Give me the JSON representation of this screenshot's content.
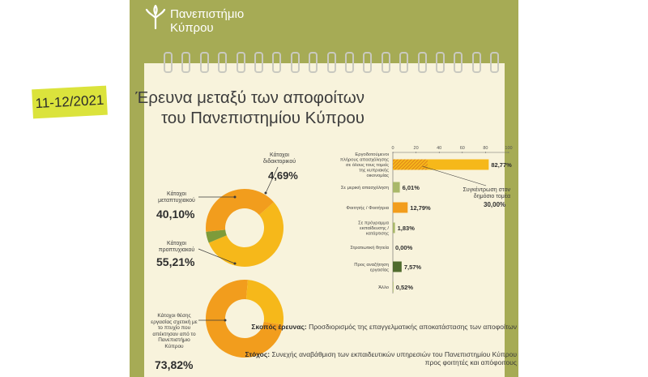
{
  "header": {
    "university_name_line1": "Πανεπιστήμιο",
    "university_name_line2": "Κύπρου",
    "logo_icon": "cyprus-university-tree-logo-icon"
  },
  "date": "11-12/2021",
  "title_line1": "Έρευνα μεταξύ των αποφοίτων",
  "title_line2": "του Πανεπιστημίου Κύπρου",
  "colors": {
    "frame": "#a6ab55",
    "paper": "#f8f3dc",
    "accent_yellow": "#dbe33c",
    "orange": "#f29d1d",
    "gold": "#f6b81a",
    "green_light": "#8fae4a",
    "green_dark": "#4f6b2e"
  },
  "chart_data": [
    {
      "type": "pie",
      "labels": [
        "Κάτοχοι μεταπτυχιακού",
        "Κάτοχοι προπτυχιακού",
        "Κάτοχοι διδακτορικού"
      ],
      "values": [
        40.1,
        55.21,
        4.69
      ],
      "value_labels": [
        "40,10%",
        "55,21%",
        "4,69%"
      ],
      "colors": [
        "#f29d1d",
        "#f6b81a",
        "#7d9b3a"
      ]
    },
    {
      "type": "pie",
      "labels": [
        "Κάτοχοι θέσης εργασίας σχετική με το πτυχίο που απέκτησαν από το Πανεπιστήμιο Κύπρου"
      ],
      "values": [
        73.82
      ],
      "value_labels": [
        "73,82%"
      ],
      "colors": [
        "#f29d1d",
        "#f6b81a"
      ]
    },
    {
      "type": "bar",
      "orientation": "horizontal",
      "categories": [
        "Εργοδοτούμενοι πλήρους απασχόλησης σε όλους τους τομείς της κυπριακής οικονομίας",
        "Σε μερική απασχόληση",
        "Φοιτητής / Φοιτήτρια",
        "Σε πρόγραμμα εκπαίδευσης / κατάρτισης",
        "Στρατιωτική θητεία",
        "Προς αναζήτηση εργασίας",
        "Άλλο"
      ],
      "values": [
        82.77,
        6.01,
        12.79,
        1.83,
        0.0,
        7.57,
        0.52
      ],
      "value_labels": [
        "82,77%",
        "6,01%",
        "12,79%",
        "1,83%",
        "0,00%",
        "7,57%",
        "0,52%"
      ],
      "colors": [
        "#f6b81a",
        "#a9b86a",
        "#f29d1d",
        "#a9b86a",
        "#a9b86a",
        "#4f6b2e",
        "#a9b86a"
      ],
      "xlim": [
        0,
        100
      ],
      "xticks": [
        "0",
        "20",
        "40",
        "60",
        "80",
        "100"
      ],
      "annotation": {
        "text": "Συγκέντρωση στον δημόσιο τομέα",
        "value": 30.0,
        "value_label": "30,00%"
      }
    }
  ],
  "labels": {
    "doctoral": "Κάτοχοι διδακτορικού",
    "master": "Κάτοχοι μεταπτυχιακού",
    "bachelor": "Κάτοχοι προπτυχιακού",
    "job_related": "Κάτοχοι θέσης εργασίας σχετική με το πτυχίο που απέκτησαν από το Πανεπιστήμιο Κύπρου",
    "public_sector": "Συγκέντρωση στον δημόσιο τομέα"
  },
  "footer": {
    "purpose_label": "Σκοπός έρευνας:",
    "purpose_text": "Προσδιορισμός της επαγγελματικής αποκατάστασης των αποφοίτων",
    "goal_label": "Στόχος:",
    "goal_text": "Συνεχής αναβάθμιση των εκπαιδευτικών υπηρεσιών του Πανεπιστημίου Κύπρου προς φοιτητές και απόφοιτους"
  }
}
